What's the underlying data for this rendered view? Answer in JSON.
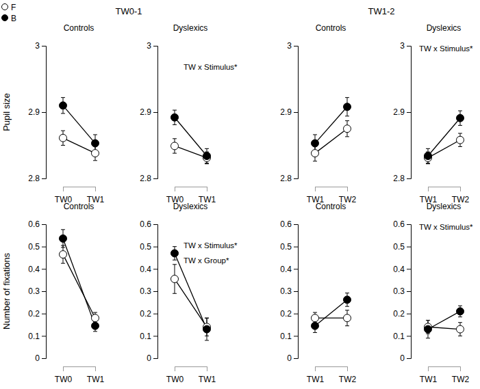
{
  "groups": [
    {
      "title": "TW0-1"
    },
    {
      "title": "TW1-2"
    }
  ],
  "chart_data": [
    {
      "type": "line",
      "title": "Controls",
      "ylabel": "Pupil size",
      "legend": "top-left",
      "categories": [
        "TW0",
        "TW1"
      ],
      "ylim": [
        2.8,
        3
      ],
      "yticks": [
        2.8,
        2.9,
        3
      ],
      "series": [
        {
          "name": "F",
          "color": "#ffffff",
          "marker": "circle",
          "values": [
            2.861,
            2.838
          ],
          "errors": [
            0.011,
            0.011
          ]
        },
        {
          "name": "B",
          "color": "#000000",
          "marker": "circle",
          "values": [
            2.91,
            2.853
          ],
          "errors": [
            0.012,
            0.013
          ]
        }
      ]
    },
    {
      "type": "line",
      "title": "Dyslexics",
      "annotations": [
        "TW x Stimulus*"
      ],
      "categories": [
        "TW0",
        "TW1"
      ],
      "ylim": [
        2.8,
        3
      ],
      "yticks": [
        2.8,
        2.9,
        3
      ],
      "series": [
        {
          "name": "F",
          "color": "#ffffff",
          "marker": "circle",
          "values": [
            2.849,
            2.831
          ],
          "errors": [
            0.011,
            0.009
          ]
        },
        {
          "name": "B",
          "color": "#000000",
          "marker": "circle",
          "values": [
            2.892,
            2.834
          ],
          "errors": [
            0.011,
            0.011
          ]
        }
      ]
    },
    {
      "type": "line",
      "title": "Controls",
      "categories": [
        "TW1",
        "TW2"
      ],
      "ylim": [
        2.8,
        3
      ],
      "yticks": [
        2.8,
        2.9,
        3
      ],
      "series": [
        {
          "name": "F",
          "color": "#ffffff",
          "marker": "circle",
          "values": [
            2.838,
            2.875
          ],
          "errors": [
            0.012,
            0.012
          ]
        },
        {
          "name": "B",
          "color": "#000000",
          "marker": "circle",
          "values": [
            2.853,
            2.908
          ],
          "errors": [
            0.013,
            0.014
          ]
        }
      ]
    },
    {
      "type": "line",
      "title": "Dyslexics",
      "annotations": [
        "TW x Stimulus*"
      ],
      "categories": [
        "TW1",
        "TW2"
      ],
      "ylim": [
        2.8,
        3
      ],
      "yticks": [
        2.8,
        2.9,
        3
      ],
      "series": [
        {
          "name": "F",
          "color": "#ffffff",
          "marker": "circle",
          "values": [
            2.831,
            2.858
          ],
          "errors": [
            0.009,
            0.01
          ]
        },
        {
          "name": "B",
          "color": "#000000",
          "marker": "circle",
          "values": [
            2.834,
            2.891
          ],
          "errors": [
            0.011,
            0.011
          ]
        }
      ]
    },
    {
      "type": "line",
      "title": "Controls",
      "ylabel": "Number of fixations",
      "categories": [
        "TW0",
        "TW1"
      ],
      "ylim": [
        0,
        0.6
      ],
      "yticks": [
        0,
        0.1,
        0.2,
        0.3,
        0.4,
        0.5,
        0.6
      ],
      "series": [
        {
          "name": "F",
          "color": "#ffffff",
          "marker": "circle",
          "values": [
            0.465,
            0.18
          ],
          "errors": [
            0.04,
            0.025
          ]
        },
        {
          "name": "B",
          "color": "#000000",
          "marker": "circle",
          "values": [
            0.536,
            0.145
          ],
          "errors": [
            0.04,
            0.025
          ]
        }
      ]
    },
    {
      "type": "line",
      "title": "Dyslexics",
      "annotations": [
        "TW x Stimulus*",
        "TW x Group*"
      ],
      "categories": [
        "TW0",
        "TW1"
      ],
      "ylim": [
        0,
        0.6
      ],
      "yticks": [
        0,
        0.1,
        0.2,
        0.3,
        0.4,
        0.5,
        0.6
      ],
      "series": [
        {
          "name": "F",
          "color": "#ffffff",
          "marker": "circle",
          "values": [
            0.355,
            0.14
          ],
          "errors": [
            0.065,
            0.04
          ]
        },
        {
          "name": "B",
          "color": "#000000",
          "marker": "circle",
          "values": [
            0.47,
            0.13
          ],
          "errors": [
            0.03,
            0.05
          ]
        }
      ]
    },
    {
      "type": "line",
      "title": "Controls",
      "categories": [
        "TW1",
        "TW2"
      ],
      "ylim": [
        0,
        0.6
      ],
      "yticks": [
        0,
        0.1,
        0.2,
        0.3,
        0.4,
        0.5,
        0.6
      ],
      "series": [
        {
          "name": "F",
          "color": "#ffffff",
          "marker": "circle",
          "values": [
            0.18,
            0.18
          ],
          "errors": [
            0.025,
            0.035
          ]
        },
        {
          "name": "B",
          "color": "#000000",
          "marker": "circle",
          "values": [
            0.145,
            0.262
          ],
          "errors": [
            0.03,
            0.03
          ]
        }
      ]
    },
    {
      "type": "line",
      "title": "Dyslexics",
      "annotations": [
        "TW x Stimulus*"
      ],
      "categories": [
        "TW1",
        "TW2"
      ],
      "ylim": [
        0,
        0.6
      ],
      "yticks": [
        0,
        0.1,
        0.2,
        0.3,
        0.4,
        0.5,
        0.6
      ],
      "series": [
        {
          "name": "F",
          "color": "#ffffff",
          "marker": "circle",
          "values": [
            0.14,
            0.13
          ],
          "errors": [
            0.03,
            0.03
          ]
        },
        {
          "name": "B",
          "color": "#000000",
          "marker": "circle",
          "values": [
            0.13,
            0.21
          ],
          "errors": [
            0.04,
            0.025
          ]
        }
      ]
    }
  ]
}
